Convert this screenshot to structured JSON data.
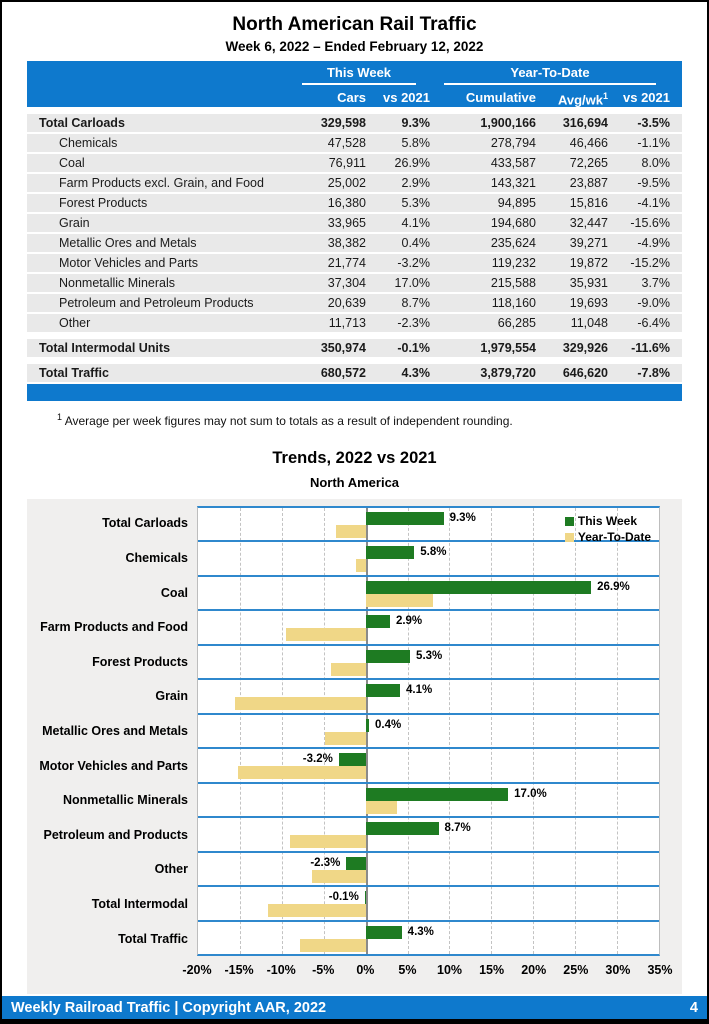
{
  "report": {
    "title": "North American Rail Traffic",
    "subtitle": "Week 6, 2022 – Ended February 12, 2022"
  },
  "table": {
    "group_headers": {
      "this_week": "This Week",
      "ytd": "Year-To-Date"
    },
    "col_headers": {
      "cars": "Cars",
      "tw_vs": "vs 2021",
      "cumulative": "Cumulative",
      "avg": "Avg/wk",
      "avg_sup": "1",
      "ytd_vs": "vs 2021"
    },
    "rows": [
      {
        "label": "Total Carloads",
        "style": "total",
        "cars": "329,598",
        "tw_vs": "9.3%",
        "cumulative": "1,900,166",
        "avg": "316,694",
        "ytd_vs": "-3.5%"
      },
      {
        "label": "Chemicals",
        "style": "sub",
        "cars": "47,528",
        "tw_vs": "5.8%",
        "cumulative": "278,794",
        "avg": "46,466",
        "ytd_vs": "-1.1%"
      },
      {
        "label": "Coal",
        "style": "sub",
        "cars": "76,911",
        "tw_vs": "26.9%",
        "cumulative": "433,587",
        "avg": "72,265",
        "ytd_vs": "8.0%"
      },
      {
        "label": "Farm Products excl. Grain, and Food",
        "style": "sub",
        "cars": "25,002",
        "tw_vs": "2.9%",
        "cumulative": "143,321",
        "avg": "23,887",
        "ytd_vs": "-9.5%"
      },
      {
        "label": "Forest Products",
        "style": "sub",
        "cars": "16,380",
        "tw_vs": "5.3%",
        "cumulative": "94,895",
        "avg": "15,816",
        "ytd_vs": "-4.1%"
      },
      {
        "label": "Grain",
        "style": "sub",
        "cars": "33,965",
        "tw_vs": "4.1%",
        "cumulative": "194,680",
        "avg": "32,447",
        "ytd_vs": "-15.6%"
      },
      {
        "label": "Metallic Ores and Metals",
        "style": "sub",
        "cars": "38,382",
        "tw_vs": "0.4%",
        "cumulative": "235,624",
        "avg": "39,271",
        "ytd_vs": "-4.9%"
      },
      {
        "label": "Motor Vehicles and Parts",
        "style": "sub",
        "cars": "21,774",
        "tw_vs": "-3.2%",
        "cumulative": "119,232",
        "avg": "19,872",
        "ytd_vs": "-15.2%"
      },
      {
        "label": "Nonmetallic Minerals",
        "style": "sub",
        "cars": "37,304",
        "tw_vs": "17.0%",
        "cumulative": "215,588",
        "avg": "35,931",
        "ytd_vs": "3.7%"
      },
      {
        "label": "Petroleum and Petroleum Products",
        "style": "sub",
        "cars": "20,639",
        "tw_vs": "8.7%",
        "cumulative": "118,160",
        "avg": "19,693",
        "ytd_vs": "-9.0%"
      },
      {
        "label": "Other",
        "style": "sub",
        "cars": "11,713",
        "tw_vs": "-2.3%",
        "cumulative": "66,285",
        "avg": "11,048",
        "ytd_vs": "-6.4%"
      },
      {
        "label": "Total Intermodal Units",
        "style": "total",
        "cars": "350,974",
        "tw_vs": "-0.1%",
        "cumulative": "1,979,554",
        "avg": "329,926",
        "ytd_vs": "-11.6%"
      },
      {
        "label": "Total Traffic",
        "style": "total",
        "cars": "680,572",
        "tw_vs": "4.3%",
        "cumulative": "3,879,720",
        "avg": "646,620",
        "ytd_vs": "-7.8%"
      }
    ]
  },
  "footnote": {
    "sup": "1",
    "text": " Average per week figures may not sum to totals as a result of independent rounding."
  },
  "chart_data": {
    "type": "bar",
    "orientation": "horizontal",
    "title": "Trends, 2022 vs 2021",
    "subtitle": "North America",
    "categories": [
      "Total Carloads",
      "Chemicals",
      "Coal",
      "Farm Products and Food",
      "Forest Products",
      "Grain",
      "Metallic Ores and Metals",
      "Motor Vehicles and Parts",
      "Nonmetallic Minerals",
      "Petroleum and Products",
      "Other",
      "Total Intermodal",
      "Total Traffic"
    ],
    "series": [
      {
        "name": "This Week",
        "color": "#1e7b22",
        "values": [
          9.3,
          5.8,
          26.9,
          2.9,
          5.3,
          4.1,
          0.4,
          -3.2,
          17.0,
          8.7,
          -2.3,
          -0.1,
          4.3
        ]
      },
      {
        "name": "Year-To-Date",
        "color": "#f0d787",
        "values": [
          -3.5,
          -1.1,
          8.0,
          -9.5,
          -4.1,
          -15.6,
          -4.9,
          -15.2,
          3.7,
          -9.0,
          -6.4,
          -11.6,
          -7.8
        ]
      }
    ],
    "bar_labels": [
      "9.3%",
      "5.8%",
      "26.9%",
      "2.9%",
      "5.3%",
      "4.1%",
      "0.4%",
      "-3.2%",
      "17.0%",
      "8.7%",
      "-2.3%",
      "-0.1%",
      "4.3%"
    ],
    "xlim": [
      -20,
      35
    ],
    "tick_values": [
      -20,
      -15,
      -10,
      -5,
      0,
      5,
      10,
      15,
      20,
      25,
      30,
      35
    ],
    "x_ticks": [
      "-20%",
      "-15%",
      "-10%",
      "-5%",
      "0%",
      "5%",
      "10%",
      "15%",
      "20%",
      "25%",
      "30%",
      "35%"
    ],
    "legend_position": "top-right",
    "grid": true
  },
  "footer": {
    "text": "Weekly Railroad Traffic | Copyright AAR, 2022",
    "page": "4"
  },
  "colors": {
    "accent_blue": "#0e79cd",
    "band_line_blue": "#2f88cd",
    "bar_green": "#1e7b22",
    "bar_tan": "#f0d787",
    "positive_text": "#2c7f2c",
    "negative_text": "#e8291f"
  }
}
